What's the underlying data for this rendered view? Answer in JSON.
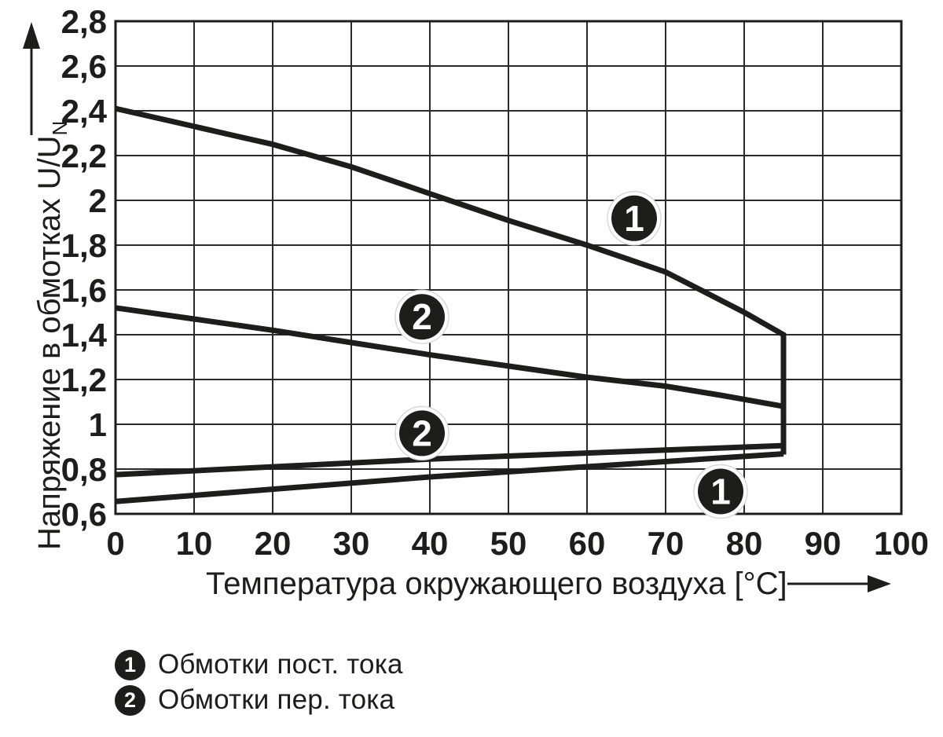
{
  "colors": {
    "ink": "#1d1d1b",
    "grid": "#2a2a2a",
    "background": "#ffffff",
    "badge_fill": "#1d1d1b",
    "badge_text": "#ffffff",
    "badge_halo": "#ffffff",
    "badge_halo_edge": "#d9d9d9"
  },
  "chart_data": {
    "type": "line",
    "title": "",
    "xlabel": "Температура окружающего воздуха [°C]",
    "ylabel": "Напряжение в обмотках  U/U",
    "ylabel_subscript": "N",
    "xlim": [
      0,
      100
    ],
    "ylim": [
      0.6,
      2.8
    ],
    "grid": true,
    "xticks": [
      0,
      10,
      20,
      30,
      40,
      50,
      60,
      70,
      80,
      90,
      100
    ],
    "xtick_labels": [
      "0",
      "10",
      "20",
      "30",
      "40",
      "50",
      "60",
      "70",
      "80",
      "90",
      "100"
    ],
    "yticks": [
      0.6,
      0.8,
      1.0,
      1.2,
      1.4,
      1.6,
      1.8,
      2.0,
      2.2,
      2.4,
      2.6,
      2.8
    ],
    "ytick_labels": [
      "0,6",
      "0,8",
      "1",
      "1,2",
      "1,4",
      "1,6",
      "1,8",
      "2",
      "2,2",
      "2,4",
      "2,6",
      "2,8"
    ],
    "series": [
      {
        "id": "curve-1-upper",
        "marker": "1",
        "name": "Обмотки пост. тока",
        "points": [
          [
            0,
            2.41
          ],
          [
            5,
            2.37
          ],
          [
            10,
            2.33
          ],
          [
            15,
            2.29
          ],
          [
            20,
            2.25
          ],
          [
            25,
            2.2
          ],
          [
            30,
            2.15
          ],
          [
            35,
            2.09
          ],
          [
            40,
            2.03
          ],
          [
            45,
            1.97
          ],
          [
            50,
            1.91
          ],
          [
            55,
            1.855
          ],
          [
            60,
            1.8
          ],
          [
            65,
            1.74
          ],
          [
            70,
            1.68
          ],
          [
            75,
            1.59
          ],
          [
            80,
            1.5
          ],
          [
            85,
            1.4
          ],
          [
            85,
            0.865
          ]
        ]
      },
      {
        "id": "curve-2-upper",
        "marker": "2",
        "name": "Обмотки пер. тока",
        "points": [
          [
            0,
            1.52
          ],
          [
            10,
            1.47
          ],
          [
            20,
            1.42
          ],
          [
            30,
            1.365
          ],
          [
            40,
            1.31
          ],
          [
            50,
            1.26
          ],
          [
            60,
            1.21
          ],
          [
            70,
            1.17
          ],
          [
            77,
            1.13
          ],
          [
            85,
            1.08
          ]
        ]
      },
      {
        "id": "curve-2-lower",
        "marker": "2",
        "name": "Обмотки пер. тока",
        "points": [
          [
            0,
            0.775
          ],
          [
            40,
            0.845
          ],
          [
            85,
            0.905
          ]
        ]
      },
      {
        "id": "curve-1-lower",
        "marker": "1",
        "name": "Обмотки пост. тока",
        "points": [
          [
            0,
            0.655
          ],
          [
            40,
            0.765
          ],
          [
            85,
            0.868
          ]
        ]
      }
    ],
    "badges": [
      {
        "label": "1",
        "x": 66,
        "y": 1.92
      },
      {
        "label": "2",
        "x": 39,
        "y": 1.48
      },
      {
        "label": "2",
        "x": 39,
        "y": 0.96
      },
      {
        "label": "1",
        "x": 77,
        "y": 0.7
      }
    ]
  },
  "legend": {
    "items": [
      {
        "marker": "1",
        "label": "Обмотки пост. тока"
      },
      {
        "marker": "2",
        "label": "Обмотки пер. тока"
      }
    ]
  }
}
